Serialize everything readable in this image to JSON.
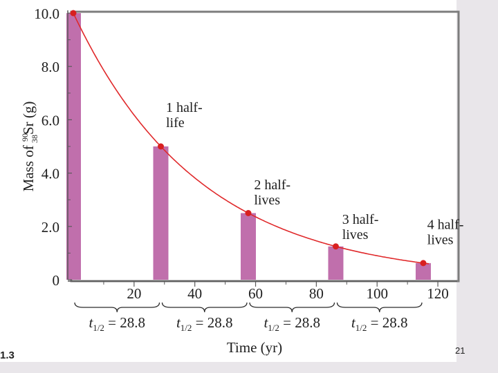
{
  "slide": {
    "figure_label": "1.3",
    "page_number": "21"
  },
  "chart_data": {
    "type": "bar",
    "title": "",
    "xlabel": "Time (yr)",
    "ylabel_prefix": "Mass of ",
    "ylabel_isotope_mass": "90",
    "ylabel_isotope_atomic": "38",
    "ylabel_symbol": "Sr (g)",
    "xlim": [
      0,
      125
    ],
    "ylim": [
      0,
      10
    ],
    "x_ticks": [
      20,
      40,
      60,
      80,
      100,
      120
    ],
    "y_ticks": [
      {
        "value": 0,
        "label": "0"
      },
      {
        "value": 2,
        "label": "2.0"
      },
      {
        "value": 4,
        "label": "4.0"
      },
      {
        "value": 6,
        "label": "6.0"
      },
      {
        "value": 8,
        "label": "8.0"
      },
      {
        "value": 10,
        "label": "10.0"
      }
    ],
    "bars": [
      {
        "x": 0,
        "value": 10.0
      },
      {
        "x": 28.8,
        "value": 5.0
      },
      {
        "x": 57.6,
        "value": 2.5
      },
      {
        "x": 86.4,
        "value": 1.25
      },
      {
        "x": 115.2,
        "value": 0.625
      }
    ],
    "curve": {
      "initial": 10.0,
      "half_life": 28.8,
      "x_end": 117
    },
    "annotations": [
      {
        "lines": [
          "1 half-",
          "life"
        ],
        "x": 30.5,
        "y": 6.3
      },
      {
        "lines": [
          "2 half-",
          "lives"
        ],
        "x": 59.5,
        "y": 3.4
      },
      {
        "lines": [
          "3 half-",
          "lives"
        ],
        "x": 88.5,
        "y": 2.1
      },
      {
        "lines": [
          "4 half-",
          "lives"
        ],
        "x": 116.5,
        "y": 1.9
      }
    ],
    "intervals": [
      {
        "start": 0,
        "end": 28.8,
        "symbol": "t",
        "subscript": "1/2",
        "text": " = 28.8"
      },
      {
        "start": 28.8,
        "end": 57.6,
        "symbol": "t",
        "subscript": "1/2",
        "text": " = 28.8"
      },
      {
        "start": 57.6,
        "end": 86.4,
        "symbol": "t",
        "subscript": "1/2",
        "text": " = 28.8"
      },
      {
        "start": 86.4,
        "end": 115.2,
        "symbol": "t",
        "subscript": "1/2",
        "text": " = 28.8"
      }
    ],
    "colors": {
      "bar": "#c06fac",
      "curve": "#e0282a",
      "point": "#d82020",
      "axis": "#5a5a5a",
      "panel": "#ffffff",
      "frame": "#7d7d7d",
      "text": "#1e1e1e"
    }
  }
}
